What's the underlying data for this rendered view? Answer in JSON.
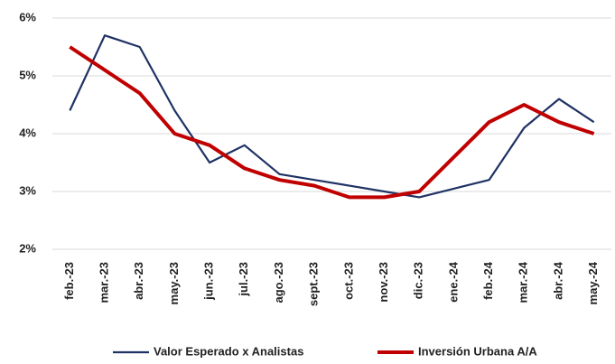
{
  "chart_data": {
    "type": "line",
    "categories": [
      "feb.-23",
      "mar.-23",
      "abr.-23",
      "may.-23",
      "jun.-23",
      "jul.-23",
      "ago.-23",
      "sept.-23",
      "oct.-23",
      "nov.-23",
      "dic.-23",
      "ene.-24",
      "feb.-24",
      "mar.-24",
      "abr.-24",
      "may.-24"
    ],
    "series": [
      {
        "name": "Valor Esperado x Analistas",
        "color": "#1f3264",
        "values": [
          4.4,
          5.7,
          5.5,
          4.4,
          3.5,
          3.8,
          3.3,
          3.2,
          3.1,
          3.0,
          2.9,
          3.05,
          3.2,
          4.1,
          4.6,
          4.2
        ]
      },
      {
        "name": "Inversión Urbana A/A",
        "color": "#c00000",
        "values": [
          5.5,
          5.1,
          4.7,
          4.0,
          3.8,
          3.4,
          3.2,
          3.1,
          2.9,
          2.9,
          3.0,
          3.6,
          4.2,
          4.5,
          4.2,
          4.0
        ]
      }
    ],
    "ylim": [
      2,
      6
    ],
    "yticks": [
      {
        "value": 2,
        "label": "2%"
      },
      {
        "value": 3,
        "label": "3%"
      },
      {
        "value": 4,
        "label": "4%"
      },
      {
        "value": 5,
        "label": "5%"
      },
      {
        "value": 6,
        "label": "6%"
      }
    ],
    "grid": true,
    "legend": "bottom"
  }
}
